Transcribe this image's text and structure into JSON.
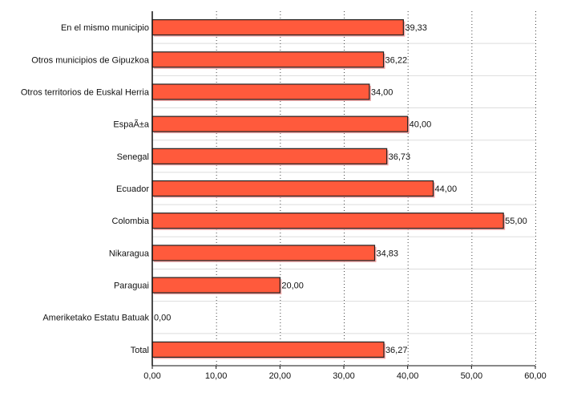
{
  "chart_data": {
    "type": "bar",
    "orientation": "horizontal",
    "title": "",
    "xlabel": "",
    "ylabel": "",
    "xlim": [
      0,
      60
    ],
    "grid": true,
    "legend": "none",
    "categories": [
      "En el mismo municipio",
      "Otros municipios de Gipuzkoa",
      "Otros territorios de Euskal Herria",
      "EspaÃ±a",
      "Senegal",
      "Ecuador",
      "Colombia",
      "Nikaragua",
      "Paraguai",
      "Ameriketako Estatu Batuak",
      "Total"
    ],
    "values": [
      39.33,
      36.22,
      34.0,
      40.0,
      36.73,
      44.0,
      55.0,
      34.83,
      20.0,
      0.0,
      36.27
    ],
    "value_labels": [
      "39,33",
      "36,22",
      "34,00",
      "40,00",
      "36,73",
      "44,00",
      "55,00",
      "34,83",
      "20,00",
      "0,00",
      "36,27"
    ],
    "ticks": [
      0,
      10,
      20,
      30,
      40,
      50,
      60
    ],
    "tick_labels": [
      "0,00",
      "10,00",
      "20,00",
      "30,00",
      "40,00",
      "50,00",
      "60,00"
    ],
    "colors": {
      "bar": "#ff5a3c",
      "bar_border": "#222222",
      "shadow": "#f3a8a8",
      "grid": "#444444",
      "row_line": "#dddddd"
    }
  }
}
